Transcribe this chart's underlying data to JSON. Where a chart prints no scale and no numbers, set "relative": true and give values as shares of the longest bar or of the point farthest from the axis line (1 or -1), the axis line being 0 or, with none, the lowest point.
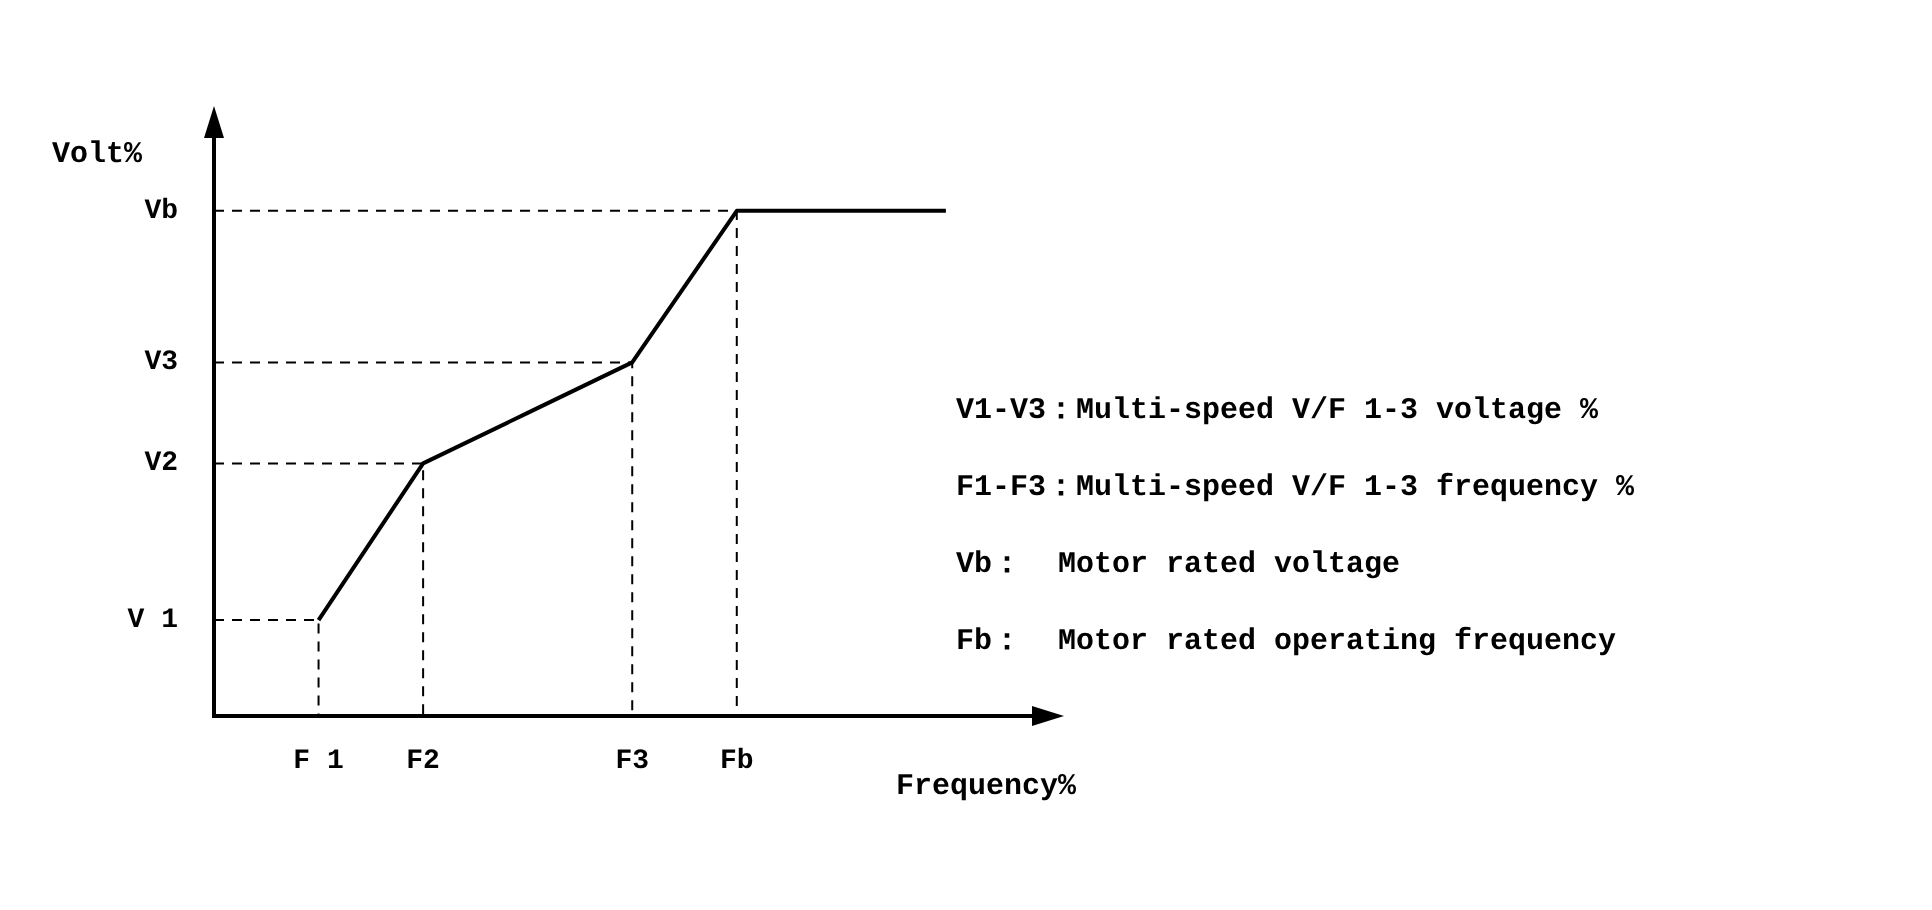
{
  "chart_data": {
    "type": "line",
    "relative": true,
    "xlabel": "Frequency%",
    "ylabel": "Volt%",
    "categories": [
      "F 1",
      "F2",
      null,
      "F3",
      "Fb",
      null,
      null
    ],
    "series": [
      {
        "color": "#000000",
        "values": [
          0.19,
          0.5,
          0.6,
          0.7,
          1,
          1,
          1
        ]
      }
    ],
    "annotations": [
      "V 1",
      "V2",
      "V3",
      "Vb",
      "V1-V3：Multi-speed V/F 1-3 voltage %",
      "F1-F3：Multi-speed V/F 1-3 frequency %",
      "Vb：  Motor rated voltage",
      "Fb：  Motor rated operating frequency"
    ],
    "legend": false,
    "grid": false
  }
}
